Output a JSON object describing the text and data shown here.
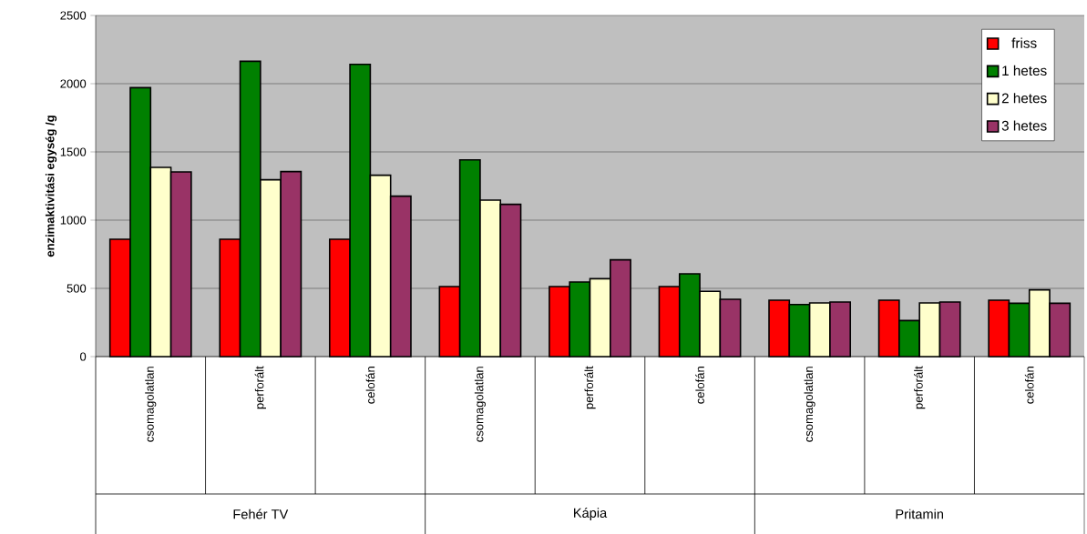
{
  "chart_data": {
    "type": "bar",
    "ylabel": "enzimaktivitási egység /g",
    "categories": [
      "csomagolatlan",
      "perforált",
      "celofán",
      "csomagolatlan",
      "perforált",
      "celofán",
      "csomagolatlan",
      "perforált",
      "celofán"
    ],
    "series": [
      {
        "name": "friss",
        "color": "#ff0000",
        "values": [
          860,
          860,
          860,
          513,
          513,
          513,
          413,
          413,
          413
        ]
      },
      {
        "name": "1 hetes",
        "color": "#008000",
        "values": [
          1971,
          2164,
          2142,
          1442,
          547,
          607,
          382,
          264,
          391
        ]
      },
      {
        "name": "2 hetes",
        "color": "#ffffcc",
        "values": [
          1387,
          1296,
          1329,
          1147,
          571,
          478,
          393,
          393,
          489
        ]
      },
      {
        "name": "3 hetes",
        "color": "#993366",
        "values": [
          1353,
          1356,
          1176,
          1116,
          709,
          420,
          400,
          400,
          391
        ]
      }
    ],
    "annotations": [
      "Fehér TV",
      "Kápia",
      "Pritamin"
    ],
    "ylim": [
      0,
      2500
    ],
    "yticks": [
      0,
      500,
      1000,
      1500,
      2000,
      2500
    ],
    "grid": "y",
    "legend": "top right"
  }
}
